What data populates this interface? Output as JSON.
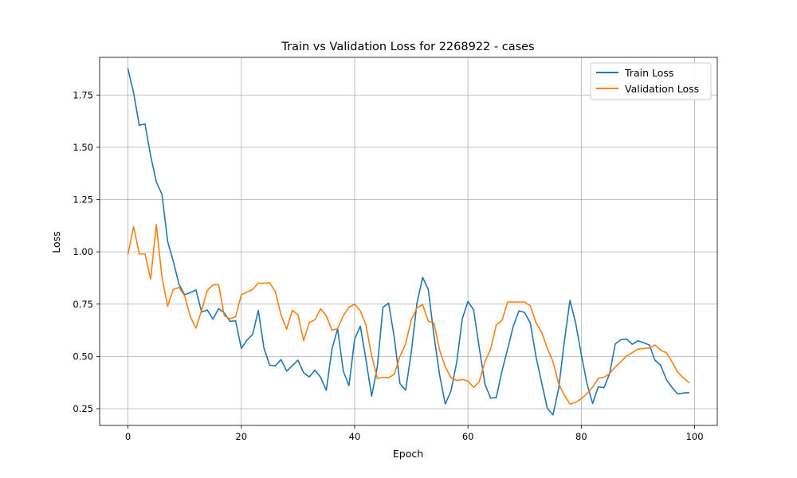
{
  "chart_data": {
    "type": "line",
    "title": "Train vs Validation Loss for 2268922 - cases",
    "xlabel": "Epoch",
    "ylabel": "Loss",
    "xlim": [
      -5,
      104
    ],
    "ylim": [
      0.17,
      1.93
    ],
    "xticks": [
      0,
      20,
      40,
      60,
      80,
      100
    ],
    "yticks": [
      0.25,
      0.5,
      0.75,
      1.0,
      1.25,
      1.5,
      1.75
    ],
    "grid": true,
    "legend_position": "top-right",
    "x": [
      0,
      1,
      2,
      3,
      4,
      5,
      6,
      7,
      8,
      9,
      10,
      11,
      12,
      13,
      14,
      15,
      16,
      17,
      18,
      19,
      20,
      21,
      22,
      23,
      24,
      25,
      26,
      27,
      28,
      29,
      30,
      31,
      32,
      33,
      34,
      35,
      36,
      37,
      38,
      39,
      40,
      41,
      42,
      43,
      44,
      45,
      46,
      47,
      48,
      49,
      50,
      51,
      52,
      53,
      54,
      55,
      56,
      57,
      58,
      59,
      60,
      61,
      62,
      63,
      64,
      65,
      66,
      67,
      68,
      69,
      70,
      71,
      72,
      73,
      74,
      75,
      76,
      77,
      78,
      79,
      80,
      81,
      82,
      83,
      84,
      85,
      86,
      87,
      88,
      89,
      90,
      91,
      92,
      93,
      94,
      95,
      96,
      97,
      98,
      99
    ],
    "series": [
      {
        "name": "Train Loss",
        "color": "#1f77b4",
        "values": [
          1.875,
          1.76,
          1.605,
          1.612,
          1.46,
          1.335,
          1.275,
          1.05,
          0.955,
          0.845,
          0.795,
          0.805,
          0.818,
          0.712,
          0.722,
          0.678,
          0.728,
          0.708,
          0.668,
          0.67,
          0.538,
          0.578,
          0.605,
          0.72,
          0.54,
          0.458,
          0.455,
          0.485,
          0.43,
          0.455,
          0.482,
          0.422,
          0.402,
          0.435,
          0.4,
          0.338,
          0.535,
          0.632,
          0.43,
          0.36,
          0.582,
          0.645,
          0.485,
          0.31,
          0.45,
          0.735,
          0.755,
          0.59,
          0.37,
          0.338,
          0.52,
          0.755,
          0.878,
          0.82,
          0.6,
          0.41,
          0.272,
          0.335,
          0.47,
          0.68,
          0.763,
          0.722,
          0.54,
          0.367,
          0.3,
          0.303,
          0.43,
          0.535,
          0.645,
          0.718,
          0.71,
          0.66,
          0.5,
          0.375,
          0.252,
          0.22,
          0.345,
          0.57,
          0.768,
          0.66,
          0.51,
          0.37,
          0.275,
          0.355,
          0.35,
          0.418,
          0.56,
          0.58,
          0.583,
          0.558,
          0.575,
          0.565,
          0.555,
          0.482,
          0.458,
          0.39,
          0.352,
          0.32,
          0.325,
          0.327
        ]
      },
      {
        "name": "Validation Loss",
        "color": "#ff7f0e",
        "values": [
          0.99,
          1.12,
          0.99,
          0.99,
          0.87,
          1.13,
          0.88,
          0.74,
          0.82,
          0.83,
          0.79,
          0.69,
          0.635,
          0.72,
          0.815,
          0.842,
          0.843,
          0.695,
          0.68,
          0.69,
          0.795,
          0.808,
          0.82,
          0.85,
          0.85,
          0.852,
          0.81,
          0.7,
          0.63,
          0.72,
          0.7,
          0.575,
          0.662,
          0.675,
          0.728,
          0.695,
          0.625,
          0.633,
          0.695,
          0.735,
          0.75,
          0.718,
          0.65,
          0.505,
          0.395,
          0.4,
          0.398,
          0.415,
          0.5,
          0.56,
          0.675,
          0.732,
          0.748,
          0.668,
          0.66,
          0.53,
          0.45,
          0.398,
          0.385,
          0.39,
          0.382,
          0.352,
          0.38,
          0.475,
          0.535,
          0.65,
          0.672,
          0.76,
          0.76,
          0.76,
          0.76,
          0.742,
          0.662,
          0.615,
          0.54,
          0.475,
          0.37,
          0.315,
          0.272,
          0.28,
          0.298,
          0.322,
          0.353,
          0.395,
          0.4,
          0.418,
          0.45,
          0.475,
          0.502,
          0.518,
          0.535,
          0.538,
          0.54,
          0.555,
          0.53,
          0.518,
          0.475,
          0.425,
          0.398,
          0.375
        ]
      }
    ]
  }
}
